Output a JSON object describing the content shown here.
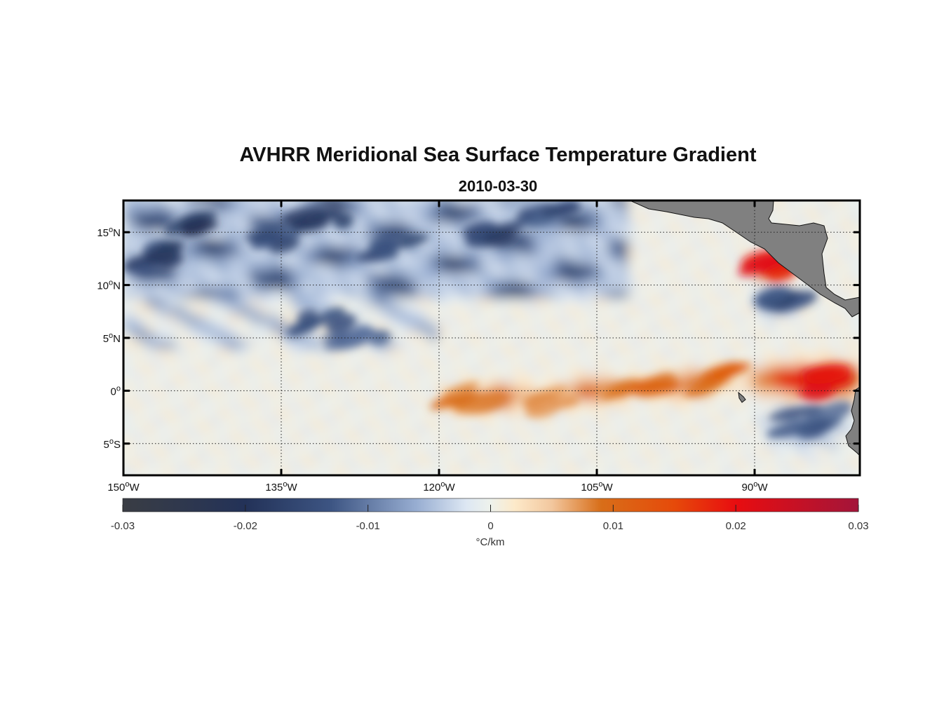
{
  "chart_data": {
    "type": "heatmap",
    "title": "AVHRR Meridional Sea Surface Temperature Gradient",
    "subtitle": "2010-03-30",
    "x_axis": {
      "range": [
        -150,
        -80
      ],
      "ticks": [
        {
          "value": -150,
          "deg": "150",
          "suffix": "W"
        },
        {
          "value": -135,
          "deg": "135",
          "suffix": "W"
        },
        {
          "value": -120,
          "deg": "120",
          "suffix": "W"
        },
        {
          "value": -105,
          "deg": "105",
          "suffix": "W"
        },
        {
          "value": -90,
          "deg": "90",
          "suffix": "W"
        }
      ]
    },
    "y_axis": {
      "range": [
        -8,
        18
      ],
      "ticks": [
        {
          "value": 15,
          "deg": "15",
          "suffix": "N"
        },
        {
          "value": 10,
          "deg": "10",
          "suffix": "N"
        },
        {
          "value": 5,
          "deg": "5",
          "suffix": "N"
        },
        {
          "value": 0,
          "deg": "0",
          "suffix": ""
        },
        {
          "value": -5,
          "deg": "5",
          "suffix": "S"
        }
      ]
    },
    "grid": true,
    "colorbar": {
      "range": [
        -0.03,
        0.03
      ],
      "ticks": [
        "-0.03",
        "-0.02",
        "-0.01",
        "0",
        "0.01",
        "0.02",
        "0.03"
      ],
      "tick_values": [
        -0.03,
        -0.02,
        -0.01,
        0,
        0.01,
        0.02,
        0.03
      ],
      "label": "°C/km",
      "placement": "bottom"
    },
    "colors": {
      "stops": [
        [
          -0.03,
          "#3a3d44"
        ],
        [
          -0.02,
          "#233258"
        ],
        [
          -0.013,
          "#3d5583"
        ],
        [
          -0.006,
          "#98aed2"
        ],
        [
          -0.002,
          "#dde7f3"
        ],
        [
          0,
          "#eef2ec"
        ],
        [
          0.002,
          "#fde9c9"
        ],
        [
          0.005,
          "#f2c79e"
        ],
        [
          0.009,
          "#d86e19"
        ],
        [
          0.015,
          "#e64a0a"
        ],
        [
          0.02,
          "#e80d10"
        ],
        [
          0.03,
          "#a3153a"
        ]
      ],
      "land": "#808080"
    },
    "features": [
      {
        "name": "northern cold eddy band",
        "lon": -147,
        "lat": 13,
        "value": -0.018
      },
      {
        "name": "northern cold eddy band",
        "lon": -142,
        "lat": 15.5,
        "value": -0.02
      },
      {
        "name": "northern cold eddy band",
        "lon": -136,
        "lat": 14,
        "value": -0.016
      },
      {
        "name": "northern cold eddy band",
        "lon": -131,
        "lat": 16,
        "value": -0.019
      },
      {
        "name": "northern cold eddy band",
        "lon": -124,
        "lat": 13.5,
        "value": -0.017
      },
      {
        "name": "northern cold eddy band",
        "lon": -115,
        "lat": 14.5,
        "value": -0.018
      },
      {
        "name": "northern cold eddy band",
        "lon": -110,
        "lat": 16.5,
        "value": -0.015
      },
      {
        "name": "mid cold eddies",
        "lon": -131,
        "lat": 6.5,
        "value": -0.015
      },
      {
        "name": "mid cold eddies",
        "lon": -127,
        "lat": 5.5,
        "value": -0.012
      },
      {
        "name": "equatorial warm front",
        "lon": -118,
        "lat": -0.5,
        "value": 0.009
      },
      {
        "name": "equatorial warm front",
        "lon": -109,
        "lat": -1,
        "value": 0.009
      },
      {
        "name": "equatorial warm front",
        "lon": -101,
        "lat": 0,
        "value": 0.011
      },
      {
        "name": "equatorial warm front",
        "lon": -93,
        "lat": 1,
        "value": 0.012
      },
      {
        "name": "eastern warm maximum",
        "lon": -84,
        "lat": 0.8,
        "value": 0.025
      },
      {
        "name": "eastern cold pool",
        "lon": -85,
        "lat": -3,
        "value": -0.014
      },
      {
        "name": "Tehuantepec warm eddy",
        "lon": -88,
        "lat": 11.5,
        "value": 0.022
      },
      {
        "name": "Tehuantepec cold eddy",
        "lon": -88,
        "lat": 8.5,
        "value": -0.016
      }
    ]
  }
}
